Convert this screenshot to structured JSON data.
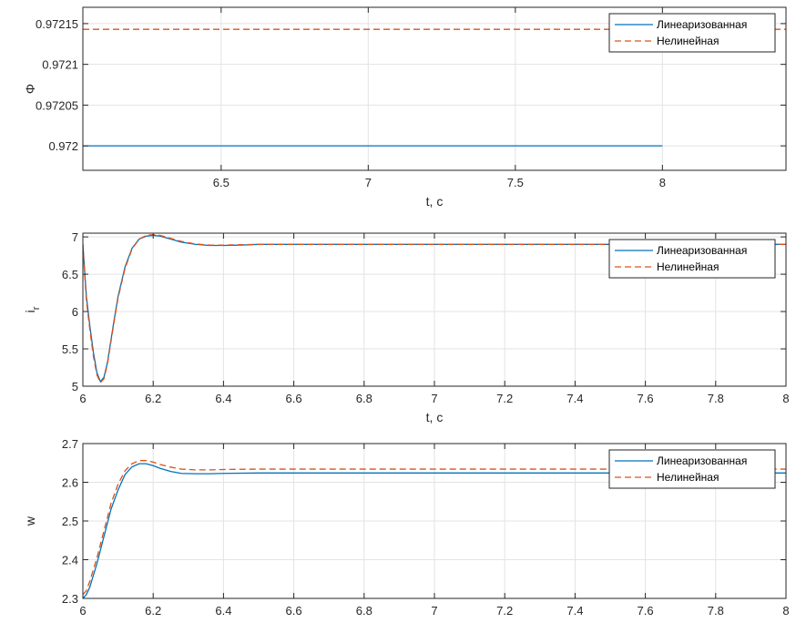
{
  "chart_data": [
    {
      "type": "line",
      "xlabel": "t, c",
      "ylabel": "Φ",
      "xlim": [
        6.03,
        8.42
      ],
      "ylim": [
        0.97197,
        0.97217
      ],
      "xticks": [
        6.5,
        7,
        7.5,
        8
      ],
      "xtick_labels": [
        "6.5",
        "7",
        "7.5",
        "8"
      ],
      "yticks": [
        0.972,
        0.97205,
        0.9721,
        0.97215
      ],
      "ytick_labels": [
        "0.972",
        "0.97205",
        "0.9721",
        "0.97215"
      ],
      "grid": true,
      "legend_position": "top-right",
      "series": [
        {
          "name": "Линеаризованная",
          "color": "#0072BD",
          "dash": "solid",
          "x": [
            6.03,
            8.0
          ],
          "y": [
            0.972,
            0.972
          ]
        },
        {
          "name": "Нелинейная",
          "color": "#D95319",
          "dash": "dashed",
          "x": [
            6.03,
            8.42
          ],
          "y": [
            0.972143,
            0.972143
          ]
        }
      ]
    },
    {
      "type": "line",
      "xlabel": "t, c",
      "ylabel": "i_r",
      "xlim": [
        6,
        8
      ],
      "ylim": [
        5,
        7.05
      ],
      "xticks": [
        6,
        6.2,
        6.4,
        6.6,
        6.8,
        7,
        7.2,
        7.4,
        7.6,
        7.8,
        8
      ],
      "xtick_labels": [
        "6",
        "6.2",
        "6.4",
        "6.6",
        "6.8",
        "7",
        "7.2",
        "7.4",
        "7.6",
        "7.8",
        "8"
      ],
      "yticks": [
        5,
        5.5,
        6,
        6.5,
        7
      ],
      "ytick_labels": [
        "5",
        "5.5",
        "6",
        "6.5",
        "7"
      ],
      "grid": true,
      "legend_position": "top-right",
      "series": [
        {
          "name": "Линеаризованная",
          "color": "#0072BD",
          "dash": "solid",
          "x": [
            6,
            6.005,
            6.01,
            6.02,
            6.03,
            6.04,
            6.05,
            6.06,
            6.07,
            6.08,
            6.09,
            6.1,
            6.12,
            6.14,
            6.16,
            6.18,
            6.2,
            6.22,
            6.25,
            6.28,
            6.32,
            6.36,
            6.4,
            6.45,
            6.5,
            6.6,
            7,
            7.5,
            8
          ],
          "y": [
            6.9,
            6.55,
            6.2,
            5.8,
            5.45,
            5.18,
            5.06,
            5.12,
            5.32,
            5.62,
            5.92,
            6.2,
            6.6,
            6.85,
            6.97,
            7.01,
            7.02,
            7.01,
            6.97,
            6.93,
            6.9,
            6.885,
            6.885,
            6.89,
            6.9,
            6.9,
            6.9,
            6.9,
            6.9
          ]
        },
        {
          "name": "Нелинейная",
          "color": "#D95319",
          "dash": "dashed",
          "x": [
            6,
            6.005,
            6.01,
            6.02,
            6.03,
            6.04,
            6.05,
            6.06,
            6.07,
            6.08,
            6.09,
            6.1,
            6.12,
            6.14,
            6.16,
            6.18,
            6.2,
            6.22,
            6.25,
            6.28,
            6.32,
            6.36,
            6.4,
            6.45,
            6.5,
            6.6,
            7,
            7.5,
            8
          ],
          "y": [
            6.9,
            6.5,
            6.15,
            5.75,
            5.4,
            5.15,
            5.05,
            5.1,
            5.3,
            5.6,
            5.9,
            6.18,
            6.58,
            6.84,
            6.97,
            7.02,
            7.03,
            7.02,
            6.98,
            6.94,
            6.905,
            6.89,
            6.89,
            6.895,
            6.9,
            6.9,
            6.9,
            6.9,
            6.9
          ]
        }
      ]
    },
    {
      "type": "line",
      "xlabel": "",
      "ylabel": "w",
      "xlim": [
        6,
        8
      ],
      "ylim": [
        2.3,
        2.7
      ],
      "xticks": [
        6,
        6.2,
        6.4,
        6.6,
        6.8,
        7,
        7.2,
        7.4,
        7.6,
        7.8,
        8
      ],
      "xtick_labels": [
        "6",
        "6.2",
        "6.4",
        "6.6",
        "6.8",
        "7",
        "7.2",
        "7.4",
        "7.6",
        "7.8",
        "8"
      ],
      "yticks": [
        2.3,
        2.4,
        2.5,
        2.6,
        2.7
      ],
      "ytick_labels": [
        "2.3",
        "2.4",
        "2.5",
        "2.6",
        "2.7"
      ],
      "grid": true,
      "legend_position": "top-right",
      "series": [
        {
          "name": "Линеаризованная",
          "color": "#0072BD",
          "dash": "solid",
          "x": [
            6,
            6.01,
            6.02,
            6.04,
            6.06,
            6.08,
            6.1,
            6.12,
            6.14,
            6.16,
            6.18,
            6.2,
            6.22,
            6.25,
            6.28,
            6.32,
            6.36,
            6.4,
            6.5,
            7,
            7.5,
            8
          ],
          "y": [
            2.3,
            2.31,
            2.33,
            2.39,
            2.46,
            2.53,
            2.58,
            2.62,
            2.64,
            2.648,
            2.648,
            2.643,
            2.636,
            2.628,
            2.623,
            2.622,
            2.622,
            2.623,
            2.624,
            2.624,
            2.624,
            2.624
          ]
        },
        {
          "name": "Нелинейная",
          "color": "#D95319",
          "dash": "dashed",
          "x": [
            6,
            6.01,
            6.02,
            6.04,
            6.06,
            6.08,
            6.1,
            6.12,
            6.14,
            6.16,
            6.18,
            6.2,
            6.22,
            6.25,
            6.28,
            6.32,
            6.36,
            6.4,
            6.5,
            7,
            7.5,
            8
          ],
          "y": [
            2.31,
            2.32,
            2.345,
            2.405,
            2.475,
            2.545,
            2.595,
            2.63,
            2.648,
            2.656,
            2.656,
            2.652,
            2.646,
            2.639,
            2.634,
            2.632,
            2.632,
            2.633,
            2.634,
            2.634,
            2.634,
            2.634
          ]
        }
      ]
    }
  ]
}
